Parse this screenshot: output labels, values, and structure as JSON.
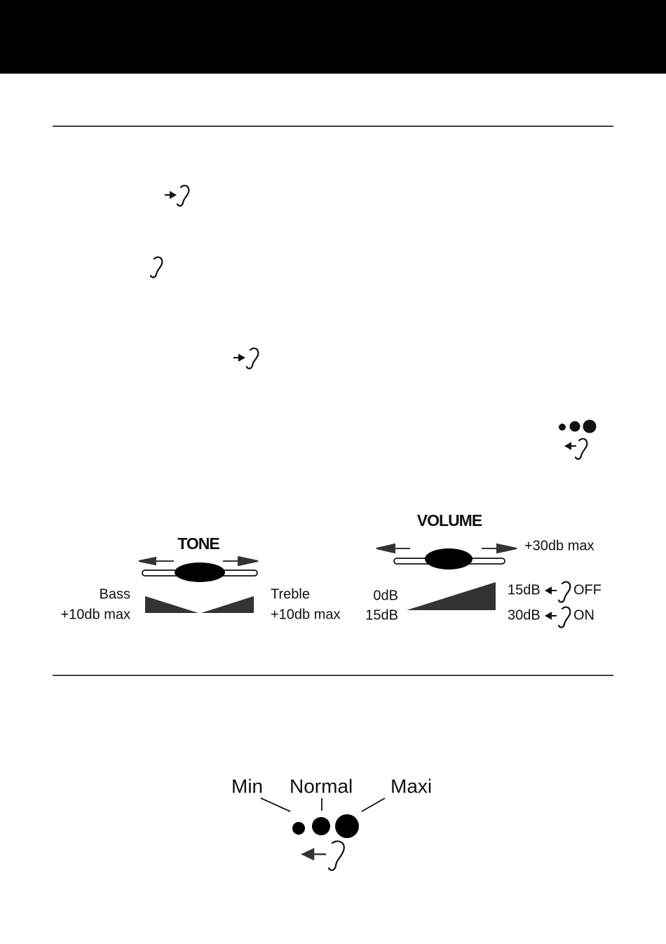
{
  "tone": {
    "title": "TONE",
    "bass": {
      "label": "Bass",
      "max": "+10db max"
    },
    "treble": {
      "label": "Treble",
      "max": "+10db max"
    }
  },
  "volume": {
    "title": "VOLUME",
    "max": "+30db max",
    "levels_left": [
      "0dB",
      "15dB"
    ],
    "levels_right": [
      {
        "level": "15dB",
        "state": "OFF"
      },
      {
        "level": "30dB",
        "state": "ON"
      }
    ]
  },
  "boost": {
    "labels": [
      "Min",
      "Normal",
      "Maxi"
    ]
  }
}
